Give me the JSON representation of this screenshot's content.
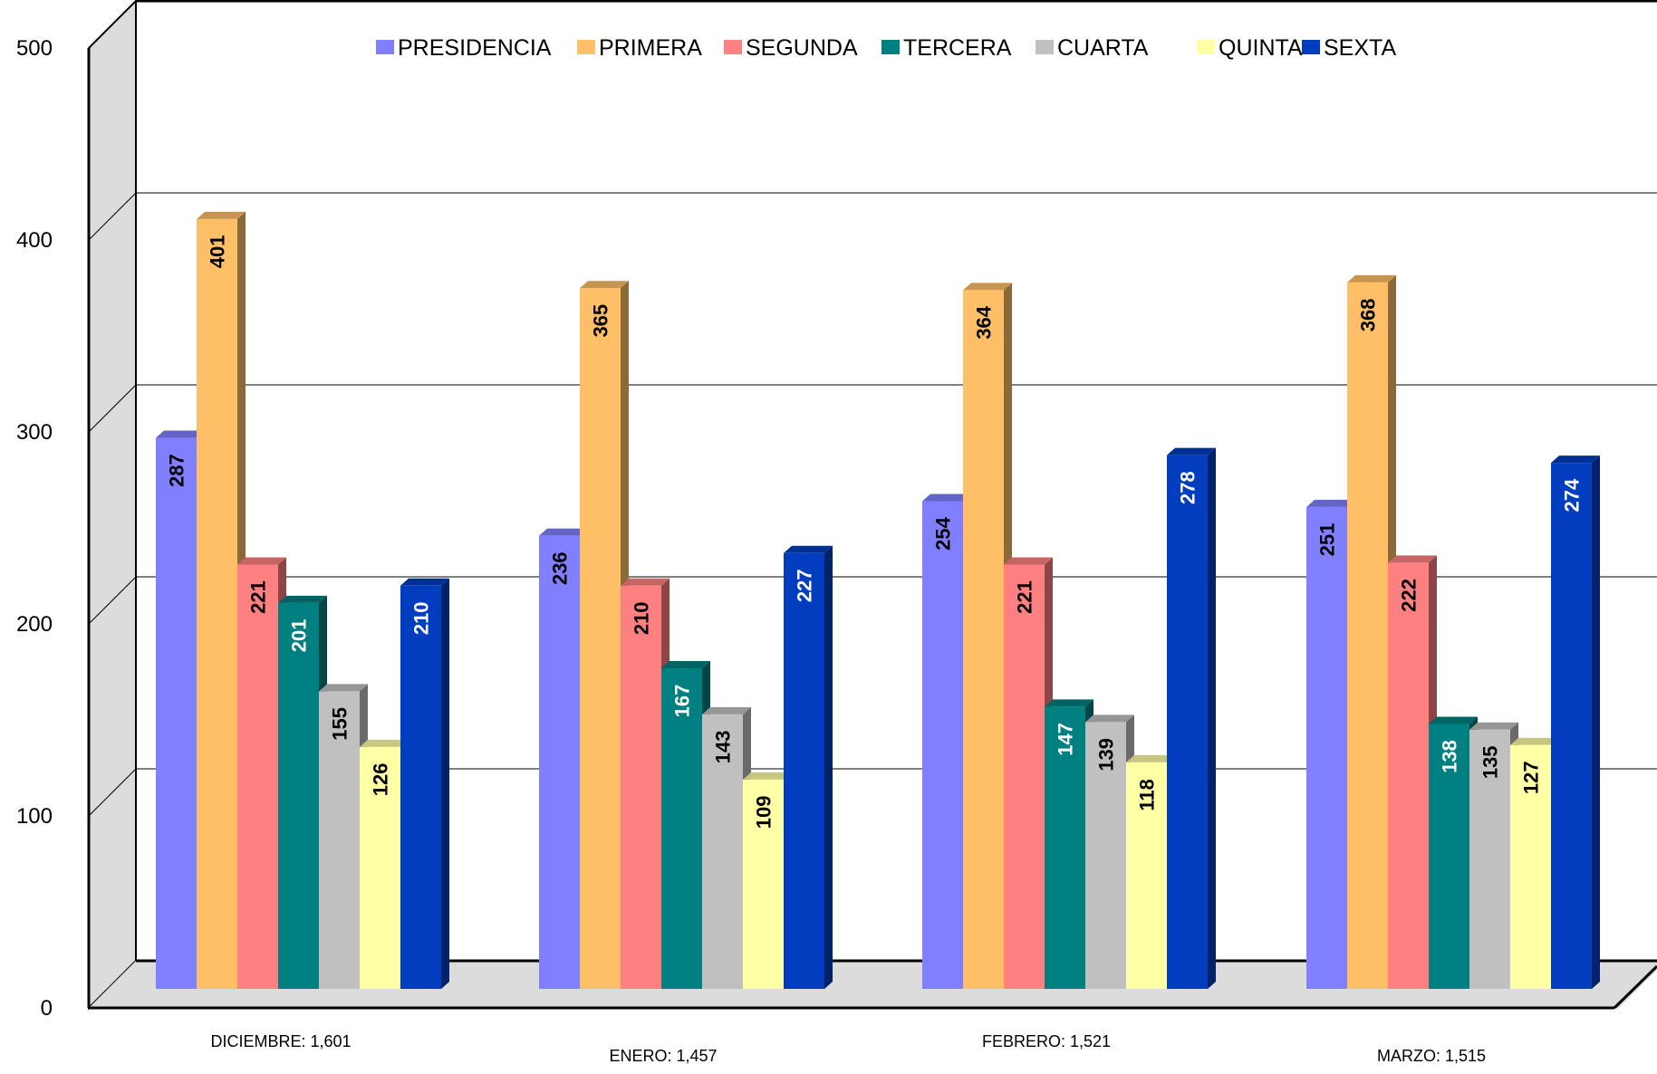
{
  "chart_data": {
    "type": "bar",
    "title": "",
    "xlabel": "",
    "ylabel": "",
    "ylim": [
      0,
      500
    ],
    "yticks": [
      "0",
      "100",
      "200",
      "300",
      "400",
      "500"
    ],
    "grid": true,
    "three_d": true,
    "legend_position": "top",
    "categories": [
      "DICIEMBRE:  1,601",
      "ENERO: 1,457",
      "FEBRERO: 1,521",
      "MARZO: 1,515"
    ],
    "series": [
      {
        "name": "PRESIDENCIA",
        "color": "#8080ff",
        "label_color": "#000000",
        "values": [
          287,
          236,
          254,
          251
        ]
      },
      {
        "name": "PRIMERA",
        "color": "#ffbf66",
        "label_color": "#000000",
        "values": [
          401,
          365,
          364,
          368
        ]
      },
      {
        "name": "SEGUNDA",
        "color": "#ff8080",
        "label_color": "#000000",
        "values": [
          221,
          210,
          221,
          222
        ]
      },
      {
        "name": "TERCERA",
        "color": "#008080",
        "label_color": "#ffffff",
        "values": [
          201,
          167,
          147,
          138
        ]
      },
      {
        "name": "CUARTA",
        "color": "#c0c0c0",
        "label_color": "#000000",
        "values": [
          155,
          143,
          139,
          135
        ]
      },
      {
        "name": "QUINTA",
        "color": "#ffffa6",
        "label_color": "#000000",
        "values": [
          126,
          109,
          118,
          127
        ]
      },
      {
        "name": "SEXTA",
        "color": "#003dbf",
        "label_color": "#ffffff",
        "values": [
          210,
          227,
          278,
          274
        ]
      }
    ]
  }
}
